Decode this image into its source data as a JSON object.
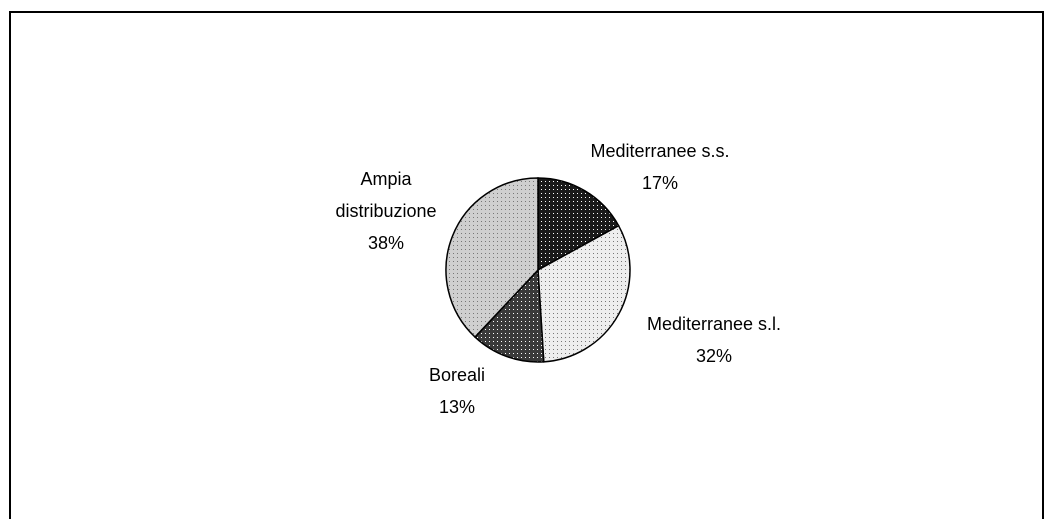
{
  "chart_data": {
    "type": "pie",
    "categories": [
      "Mediterranee s.s.",
      "Mediterranee s.l.",
      "Boreali",
      "Ampia distribuzione"
    ],
    "values": [
      17,
      32,
      13,
      38
    ],
    "value_labels": [
      "17%",
      "32%",
      "13%",
      "38%"
    ],
    "colors": [
      "#1a1a1a",
      "#eeeeee",
      "#3a3a3a",
      "#cfcfcf"
    ]
  }
}
